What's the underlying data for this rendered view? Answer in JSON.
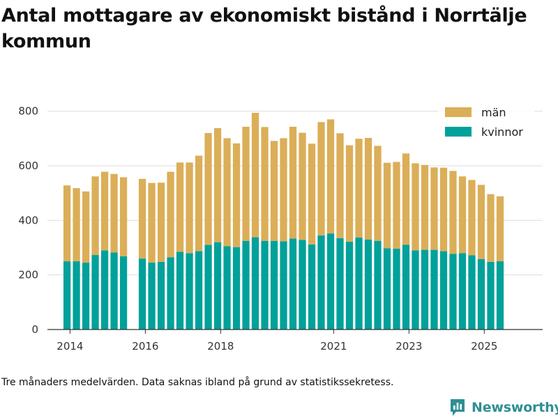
{
  "title": "Antal mottagare av ekonomiskt bistånd i Norrtälje kommun",
  "caption": "Tre månaders medelvärden. Data saknas ibland på grund av statistikssekretess.",
  "brand": {
    "name": "Newsworthy",
    "color": "#2f8f92"
  },
  "colors": {
    "men": "#dbae58",
    "women": "#00a19a",
    "grid": "#dddddd",
    "axis": "#333333"
  },
  "chart_data": {
    "type": "bar",
    "stacked": true,
    "title": "Antal mottagare av ekonomiskt bistånd i Norrtälje kommun",
    "xlabel": "",
    "ylabel": "",
    "ylim": [
      0,
      850
    ],
    "yticks": [
      0,
      200,
      400,
      600,
      800
    ],
    "x_start": 2013.42,
    "x_step": 0.25,
    "x_ticks": [
      {
        "label": "2014",
        "value": 2014.0
      },
      {
        "label": "2016",
        "value": 2016.0
      },
      {
        "label": "2018",
        "value": 2018.0
      },
      {
        "label": "2021",
        "value": 2021.0
      },
      {
        "label": "2023",
        "value": 2023.0
      },
      {
        "label": "2025",
        "value": 2025.0
      }
    ],
    "legend": {
      "position": "top-right",
      "order": [
        "män",
        "kvinnor"
      ]
    },
    "series": [
      {
        "name": "kvinnor",
        "color": "#00a19a",
        "values": [
          null,
          null,
          250,
          250,
          245,
          273,
          290,
          282,
          268,
          null,
          260,
          245,
          248,
          265,
          285,
          280,
          287,
          310,
          320,
          305,
          302,
          325,
          338,
          325,
          325,
          323,
          333,
          328,
          312,
          345,
          352,
          335,
          322,
          337,
          330,
          325,
          298,
          296,
          311,
          290,
          292,
          292,
          287,
          277,
          280,
          272,
          258,
          248,
          250
        ]
      },
      {
        "name": "män",
        "color": "#dbae58",
        "values": [
          null,
          null,
          278,
          268,
          261,
          288,
          288,
          288,
          290,
          null,
          292,
          292,
          290,
          313,
          327,
          332,
          350,
          410,
          418,
          396,
          380,
          418,
          456,
          417,
          366,
          378,
          410,
          393,
          369,
          415,
          418,
          384,
          353,
          362,
          372,
          348,
          313,
          318,
          334,
          319,
          311,
          302,
          306,
          304,
          281,
          276,
          272,
          248,
          238
        ]
      }
    ]
  }
}
